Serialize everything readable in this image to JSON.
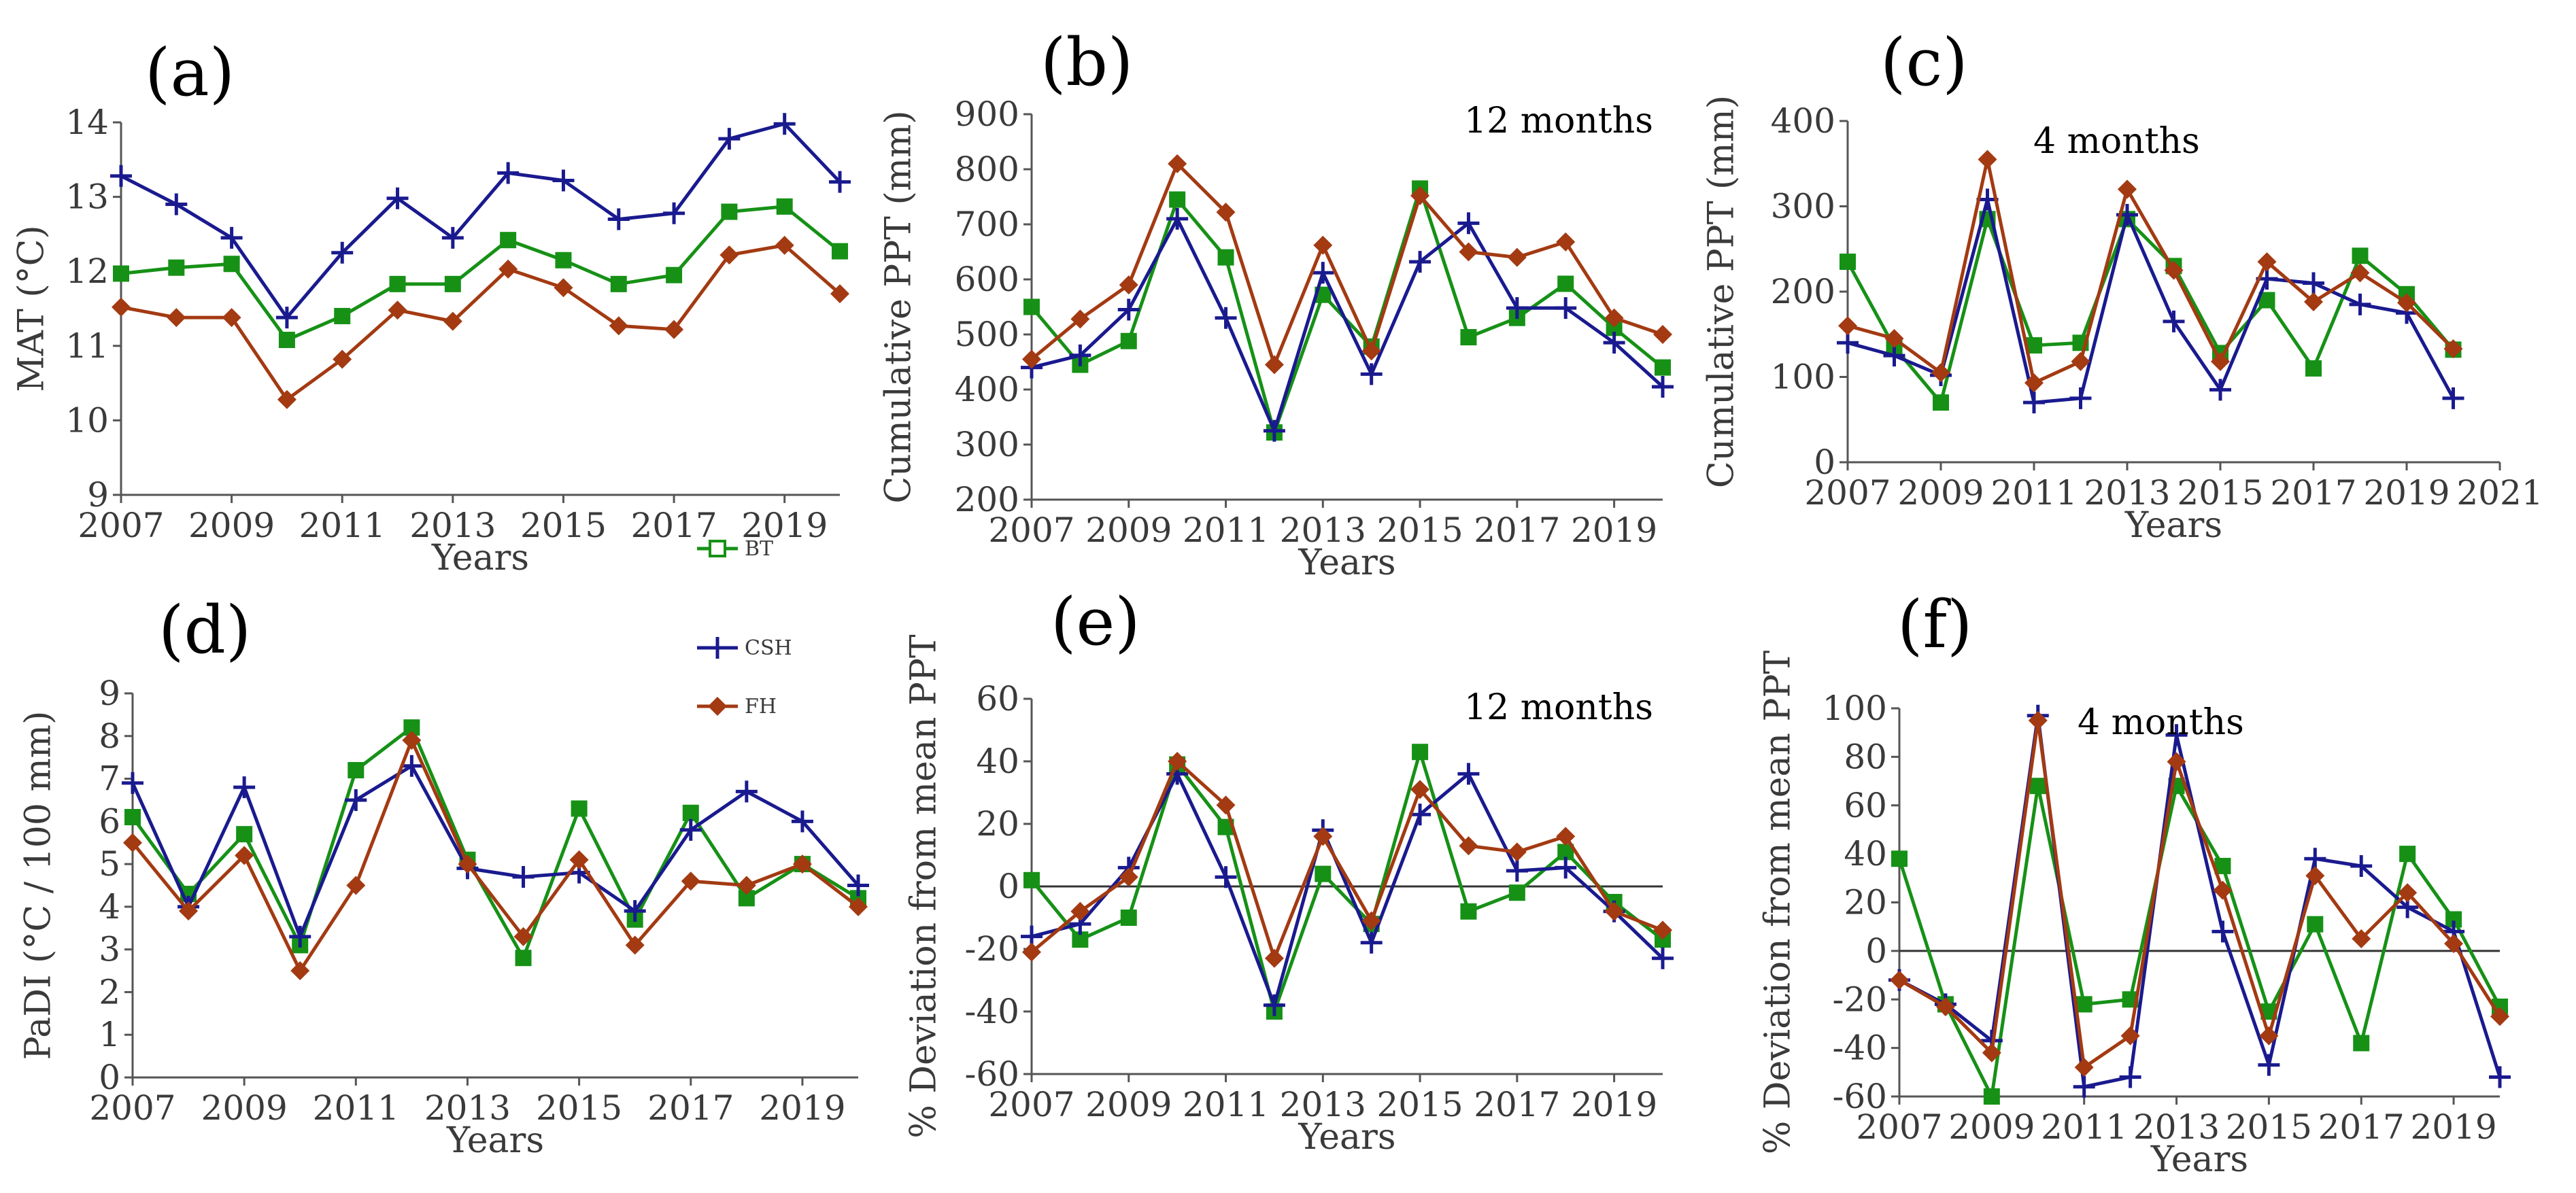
{
  "chart_data": [
    {
      "id": "a",
      "panel_label": "(a)",
      "type": "line",
      "annotation": "",
      "xlabel": "Years",
      "ylabel": "MAT (°C)",
      "xlim": [
        2007,
        2020
      ],
      "ylim": [
        9,
        14
      ],
      "xticks": [
        2007,
        2009,
        2011,
        2013,
        2015,
        2017,
        2019
      ],
      "yticks": [
        9,
        10,
        11,
        12,
        13,
        14
      ],
      "zero_line": false,
      "x": [
        2007,
        2008,
        2009,
        2010,
        2011,
        2012,
        2013,
        2014,
        2015,
        2016,
        2017,
        2018,
        2019,
        2020
      ],
      "series": [
        {
          "name": "BT",
          "values": [
            11.97,
            12.05,
            12.1,
            11.08,
            11.4,
            11.83,
            11.83,
            12.42,
            12.15,
            11.83,
            11.95,
            12.8,
            12.87,
            12.27
          ]
        },
        {
          "name": "CSH",
          "values": [
            13.28,
            12.9,
            12.45,
            11.38,
            12.25,
            12.98,
            12.45,
            13.32,
            13.22,
            12.7,
            12.78,
            13.78,
            13.98,
            13.2
          ]
        },
        {
          "name": "FH",
          "values": [
            11.52,
            11.38,
            11.38,
            10.28,
            10.82,
            11.48,
            11.33,
            12.03,
            11.78,
            11.27,
            11.22,
            12.22,
            12.35,
            11.7
          ]
        }
      ]
    },
    {
      "id": "b",
      "panel_label": "(b)",
      "type": "line",
      "annotation": "12 months",
      "xlabel": "Years",
      "ylabel": "Cumulative PPT (mm)",
      "xlim": [
        2007,
        2020
      ],
      "ylim": [
        200,
        900
      ],
      "xticks": [
        2007,
        2009,
        2011,
        2013,
        2015,
        2017,
        2019
      ],
      "yticks": [
        200,
        300,
        400,
        500,
        600,
        700,
        800,
        900
      ],
      "zero_line": false,
      "x": [
        2007,
        2008,
        2009,
        2010,
        2011,
        2012,
        2013,
        2014,
        2015,
        2016,
        2017,
        2018,
        2019,
        2020
      ],
      "series": [
        {
          "name": "BT",
          "values": [
            550,
            445,
            488,
            745,
            640,
            322,
            572,
            478,
            765,
            495,
            530,
            592,
            512,
            440
          ]
        },
        {
          "name": "CSH",
          "values": [
            440,
            462,
            545,
            710,
            530,
            325,
            612,
            428,
            632,
            702,
            548,
            548,
            485,
            405
          ]
        },
        {
          "name": "FH",
          "values": [
            455,
            528,
            590,
            810,
            722,
            445,
            662,
            470,
            752,
            650,
            640,
            668,
            530,
            500
          ]
        }
      ]
    },
    {
      "id": "c",
      "panel_label": "(c)",
      "type": "line",
      "annotation": "4 months",
      "xlabel": "Years",
      "ylabel": "Cumulative PPT (mm)",
      "xlim": [
        2007,
        2021
      ],
      "ylim": [
        0,
        400
      ],
      "xticks": [
        2007,
        2009,
        2011,
        2013,
        2015,
        2017,
        2019,
        2021
      ],
      "yticks": [
        0,
        100,
        200,
        300,
        400
      ],
      "zero_line": false,
      "x": [
        2007,
        2008,
        2009,
        2010,
        2011,
        2012,
        2013,
        2014,
        2015,
        2016,
        2017,
        2018,
        2019,
        2020
      ],
      "series": [
        {
          "name": "BT",
          "values": [
            235,
            135,
            70,
            285,
            137,
            140,
            285,
            230,
            128,
            190,
            110,
            242,
            197,
            132
          ]
        },
        {
          "name": "CSH",
          "values": [
            140,
            125,
            102,
            308,
            70,
            75,
            290,
            165,
            85,
            215,
            210,
            185,
            175,
            75
          ]
        },
        {
          "name": "FH",
          "values": [
            160,
            145,
            105,
            355,
            93,
            118,
            320,
            225,
            118,
            235,
            188,
            222,
            187,
            133
          ]
        }
      ]
    },
    {
      "id": "d",
      "panel_label": "(d)",
      "type": "line",
      "annotation": "",
      "xlabel": "Years",
      "ylabel": "PaDI (°C / 100 mm)",
      "xlim": [
        2007,
        2020
      ],
      "ylim": [
        0,
        9
      ],
      "xticks": [
        2007,
        2009,
        2011,
        2013,
        2015,
        2017,
        2019
      ],
      "yticks": [
        0,
        1,
        2,
        3,
        4,
        5,
        6,
        7,
        8,
        9
      ],
      "zero_line": false,
      "x": [
        2007,
        2008,
        2009,
        2010,
        2011,
        2012,
        2013,
        2014,
        2015,
        2016,
        2017,
        2018,
        2019,
        2020
      ],
      "series": [
        {
          "name": "BT",
          "values": [
            6.1,
            4.3,
            5.7,
            3.1,
            7.2,
            8.2,
            5.1,
            2.8,
            6.3,
            3.7,
            6.2,
            4.2,
            5.0,
            4.2
          ]
        },
        {
          "name": "CSH",
          "values": [
            6.9,
            4.0,
            6.8,
            3.3,
            6.5,
            7.3,
            4.9,
            4.7,
            4.8,
            3.9,
            5.8,
            6.7,
            6.0,
            4.5
          ]
        },
        {
          "name": "FH",
          "values": [
            5.5,
            3.9,
            5.2,
            2.5,
            4.5,
            7.9,
            5.0,
            3.3,
            5.1,
            3.1,
            4.6,
            4.5,
            5.0,
            4.0
          ]
        }
      ]
    },
    {
      "id": "e",
      "panel_label": "(e)",
      "type": "line",
      "annotation": "12 months",
      "xlabel": "Years",
      "ylabel": "% Deviation from mean PPT",
      "xlim": [
        2007,
        2020
      ],
      "ylim": [
        -60,
        60
      ],
      "xticks": [
        2007,
        2009,
        2011,
        2013,
        2015,
        2017,
        2019
      ],
      "yticks": [
        -60,
        -40,
        -20,
        0,
        20,
        40,
        60
      ],
      "zero_line": true,
      "x": [
        2007,
        2008,
        2009,
        2010,
        2011,
        2012,
        2013,
        2014,
        2015,
        2016,
        2017,
        2018,
        2019,
        2020
      ],
      "series": [
        {
          "name": "BT",
          "values": [
            2,
            -17,
            -10,
            39,
            19,
            -40,
            4,
            -12,
            43,
            -8,
            -2,
            11,
            -5,
            -17
          ]
        },
        {
          "name": "CSH",
          "values": [
            -16,
            -12,
            6,
            36,
            3,
            -38,
            18,
            -18,
            23,
            36,
            5,
            6,
            -8,
            -23
          ]
        },
        {
          "name": "FH",
          "values": [
            -21,
            -8,
            3,
            40,
            26,
            -23,
            16,
            -11,
            31,
            13,
            11,
            16,
            -8,
            -14
          ]
        }
      ]
    },
    {
      "id": "f",
      "panel_label": "(f)",
      "type": "line",
      "annotation": "4 months",
      "xlabel": "Years",
      "ylabel": "% Deviation from mean PPT",
      "xlim": [
        2007,
        2020
      ],
      "ylim": [
        -60,
        100
      ],
      "xticks": [
        2007,
        2009,
        2011,
        2013,
        2015,
        2017,
        2019
      ],
      "yticks": [
        -60,
        -40,
        -20,
        0,
        20,
        40,
        60,
        80,
        100
      ],
      "zero_line": true,
      "x": [
        2007,
        2008,
        2009,
        2010,
        2011,
        2012,
        2013,
        2014,
        2015,
        2016,
        2017,
        2018,
        2019,
        2020
      ],
      "series": [
        {
          "name": "BT",
          "values": [
            38,
            -22,
            -60,
            68,
            -22,
            -20,
            68,
            35,
            -25,
            11,
            -38,
            40,
            13,
            -23
          ]
        },
        {
          "name": "CSH",
          "values": [
            -12,
            -22,
            -37,
            97,
            -56,
            -52,
            89,
            8,
            -47,
            38,
            35,
            18,
            8,
            -52
          ]
        },
        {
          "name": "FH",
          "values": [
            -12,
            -23,
            -42,
            95,
            -48,
            -35,
            78,
            25,
            -35,
            31,
            5,
            24,
            3,
            -27
          ]
        }
      ]
    }
  ],
  "legend": {
    "items": [
      {
        "name": "BT",
        "color": "#169116",
        "marker": "square-open"
      },
      {
        "name": "CSH",
        "color": "#1a1a8f",
        "marker": "plus"
      },
      {
        "name": "FH",
        "color": "#a33a12",
        "marker": "diamond"
      }
    ]
  },
  "colors": {
    "BT": "#169116",
    "CSH": "#1a1a8f",
    "FH": "#a33a12",
    "axis": "#555555",
    "zero_line": "#333333"
  }
}
